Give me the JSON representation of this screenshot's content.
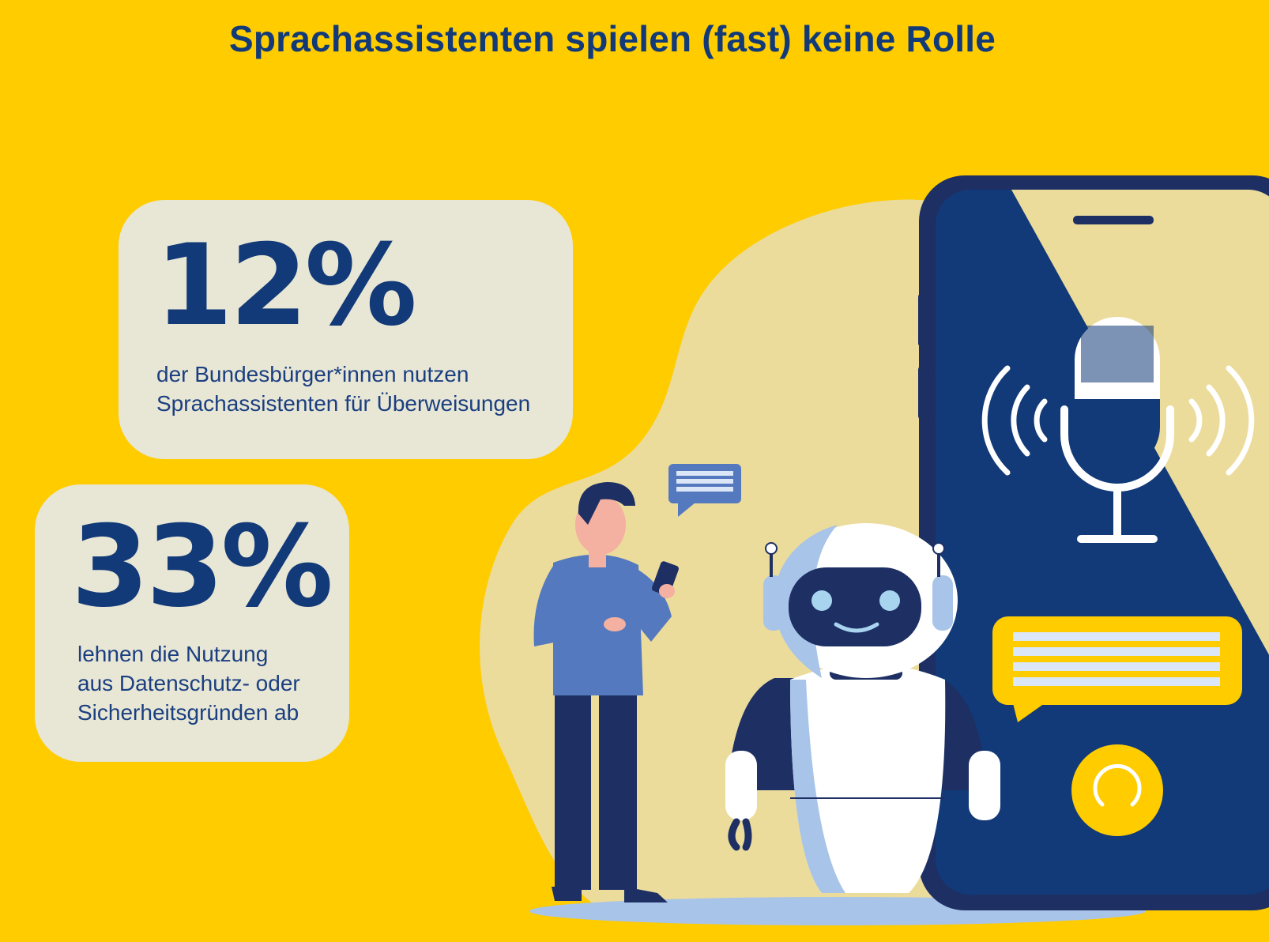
{
  "title": "Sprachassistenten spielen (fast) keine Rolle",
  "stats": [
    {
      "value": "12%",
      "description_line1": "der Bundesbürger*innen nutzen",
      "description_line2": "Sprachassistenten für Überweisungen"
    },
    {
      "value": "33%",
      "description_line1": "lehnen die Nutzung",
      "description_line2": "aus Datenschutz- oder",
      "description_line3": "Sicherheitsgründen ab"
    }
  ],
  "colors": {
    "background": "#ffcc00",
    "navy": "#123a78",
    "card": "#e8e6d5",
    "blob": "#ebdc9c",
    "shirt": "#5479bf",
    "robot_shade": "#a8c4e8"
  },
  "icons": [
    "person-icon",
    "chat-bubble-icon",
    "robot-icon",
    "smartphone-icon",
    "microphone-icon",
    "sound-wave-icon",
    "assistant-button-icon"
  ]
}
